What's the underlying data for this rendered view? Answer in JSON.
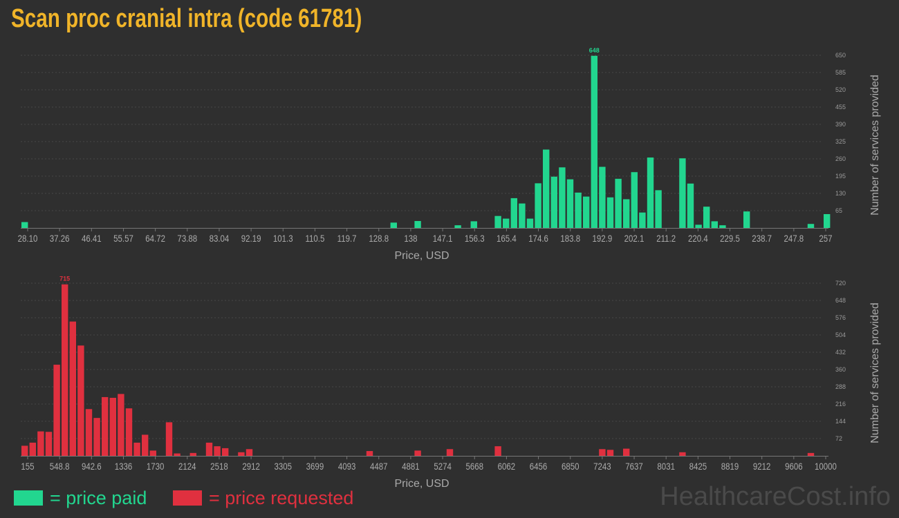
{
  "page": {
    "title": "Scan proc cranial intra (code 61781)"
  },
  "legend": {
    "paid": {
      "label": "= price paid",
      "color": "#22d68f"
    },
    "requested": {
      "label": "= price requested",
      "color": "#e0303f"
    }
  },
  "watermark": "HealthcareCost.info",
  "chart_data": [
    {
      "type": "bar",
      "id": "paid",
      "color": "#22d68f",
      "xlabel": "Price, USD",
      "ylabel": "Number of services provided",
      "xlim": [
        28.1,
        257
      ],
      "ylim": [
        0,
        650
      ],
      "x_ticks": [
        "28.10",
        "37.26",
        "46.41",
        "55.57",
        "64.72",
        "73.88",
        "83.04",
        "92.19",
        "101.3",
        "110.5",
        "119.7",
        "128.8",
        "138",
        "147.1",
        "156.3",
        "165.4",
        "174.6",
        "183.8",
        "192.9",
        "202.1",
        "211.2",
        "220.4",
        "229.5",
        "238.7",
        "247.8",
        "257"
      ],
      "y_ticks": [
        65,
        130,
        195,
        260,
        325,
        390,
        455,
        520,
        585,
        650
      ],
      "grid": true,
      "peak_label": "648",
      "bins": 100,
      "bars": [
        {
          "bin": 0,
          "value": 22
        },
        {
          "bin": 46,
          "value": 20
        },
        {
          "bin": 49,
          "value": 26
        },
        {
          "bin": 54,
          "value": 10
        },
        {
          "bin": 56,
          "value": 25
        },
        {
          "bin": 59,
          "value": 45
        },
        {
          "bin": 60,
          "value": 35
        },
        {
          "bin": 61,
          "value": 112
        },
        {
          "bin": 62,
          "value": 92
        },
        {
          "bin": 63,
          "value": 35
        },
        {
          "bin": 64,
          "value": 168
        },
        {
          "bin": 65,
          "value": 295
        },
        {
          "bin": 66,
          "value": 193
        },
        {
          "bin": 67,
          "value": 228
        },
        {
          "bin": 68,
          "value": 183
        },
        {
          "bin": 69,
          "value": 133
        },
        {
          "bin": 70,
          "value": 118
        },
        {
          "bin": 71,
          "value": 648
        },
        {
          "bin": 72,
          "value": 230
        },
        {
          "bin": 73,
          "value": 115
        },
        {
          "bin": 74,
          "value": 185
        },
        {
          "bin": 75,
          "value": 108
        },
        {
          "bin": 76,
          "value": 210
        },
        {
          "bin": 77,
          "value": 58
        },
        {
          "bin": 78,
          "value": 265
        },
        {
          "bin": 79,
          "value": 142
        },
        {
          "bin": 82,
          "value": 262
        },
        {
          "bin": 83,
          "value": 167
        },
        {
          "bin": 84,
          "value": 12
        },
        {
          "bin": 85,
          "value": 80
        },
        {
          "bin": 86,
          "value": 25
        },
        {
          "bin": 87,
          "value": 10
        },
        {
          "bin": 90,
          "value": 62
        },
        {
          "bin": 98,
          "value": 15
        },
        {
          "bin": 100,
          "value": 52
        }
      ]
    },
    {
      "type": "bar",
      "id": "requested",
      "color": "#e0303f",
      "xlabel": "Price, USD",
      "ylabel": "Number of services provided",
      "xlim": [
        155,
        10000
      ],
      "ylim": [
        0,
        720
      ],
      "x_ticks": [
        "155",
        "548.8",
        "942.6",
        "1336",
        "1730",
        "2124",
        "2518",
        "2912",
        "3305",
        "3699",
        "4093",
        "4487",
        "4881",
        "5274",
        "5668",
        "6062",
        "6456",
        "6850",
        "7243",
        "7637",
        "8031",
        "8425",
        "8819",
        "9212",
        "9606",
        "10000"
      ],
      "y_ticks": [
        72,
        144,
        216,
        288,
        360,
        432,
        504,
        576,
        648,
        720
      ],
      "grid": true,
      "peak_label": "715",
      "bins": 100,
      "bars": [
        {
          "bin": 0,
          "value": 42
        },
        {
          "bin": 1,
          "value": 55
        },
        {
          "bin": 2,
          "value": 102
        },
        {
          "bin": 3,
          "value": 100
        },
        {
          "bin": 4,
          "value": 380
        },
        {
          "bin": 5,
          "value": 715
        },
        {
          "bin": 6,
          "value": 560
        },
        {
          "bin": 7,
          "value": 460
        },
        {
          "bin": 8,
          "value": 195
        },
        {
          "bin": 9,
          "value": 158
        },
        {
          "bin": 10,
          "value": 245
        },
        {
          "bin": 11,
          "value": 242
        },
        {
          "bin": 12,
          "value": 258
        },
        {
          "bin": 13,
          "value": 198
        },
        {
          "bin": 14,
          "value": 55
        },
        {
          "bin": 15,
          "value": 88
        },
        {
          "bin": 16,
          "value": 22
        },
        {
          "bin": 18,
          "value": 140
        },
        {
          "bin": 19,
          "value": 10
        },
        {
          "bin": 21,
          "value": 12
        },
        {
          "bin": 23,
          "value": 55
        },
        {
          "bin": 24,
          "value": 40
        },
        {
          "bin": 25,
          "value": 32
        },
        {
          "bin": 27,
          "value": 15
        },
        {
          "bin": 28,
          "value": 28
        },
        {
          "bin": 43,
          "value": 20
        },
        {
          "bin": 49,
          "value": 22
        },
        {
          "bin": 53,
          "value": 28
        },
        {
          "bin": 59,
          "value": 40
        },
        {
          "bin": 72,
          "value": 28
        },
        {
          "bin": 73,
          "value": 25
        },
        {
          "bin": 75,
          "value": 30
        },
        {
          "bin": 82,
          "value": 15
        },
        {
          "bin": 98,
          "value": 12
        }
      ]
    }
  ]
}
